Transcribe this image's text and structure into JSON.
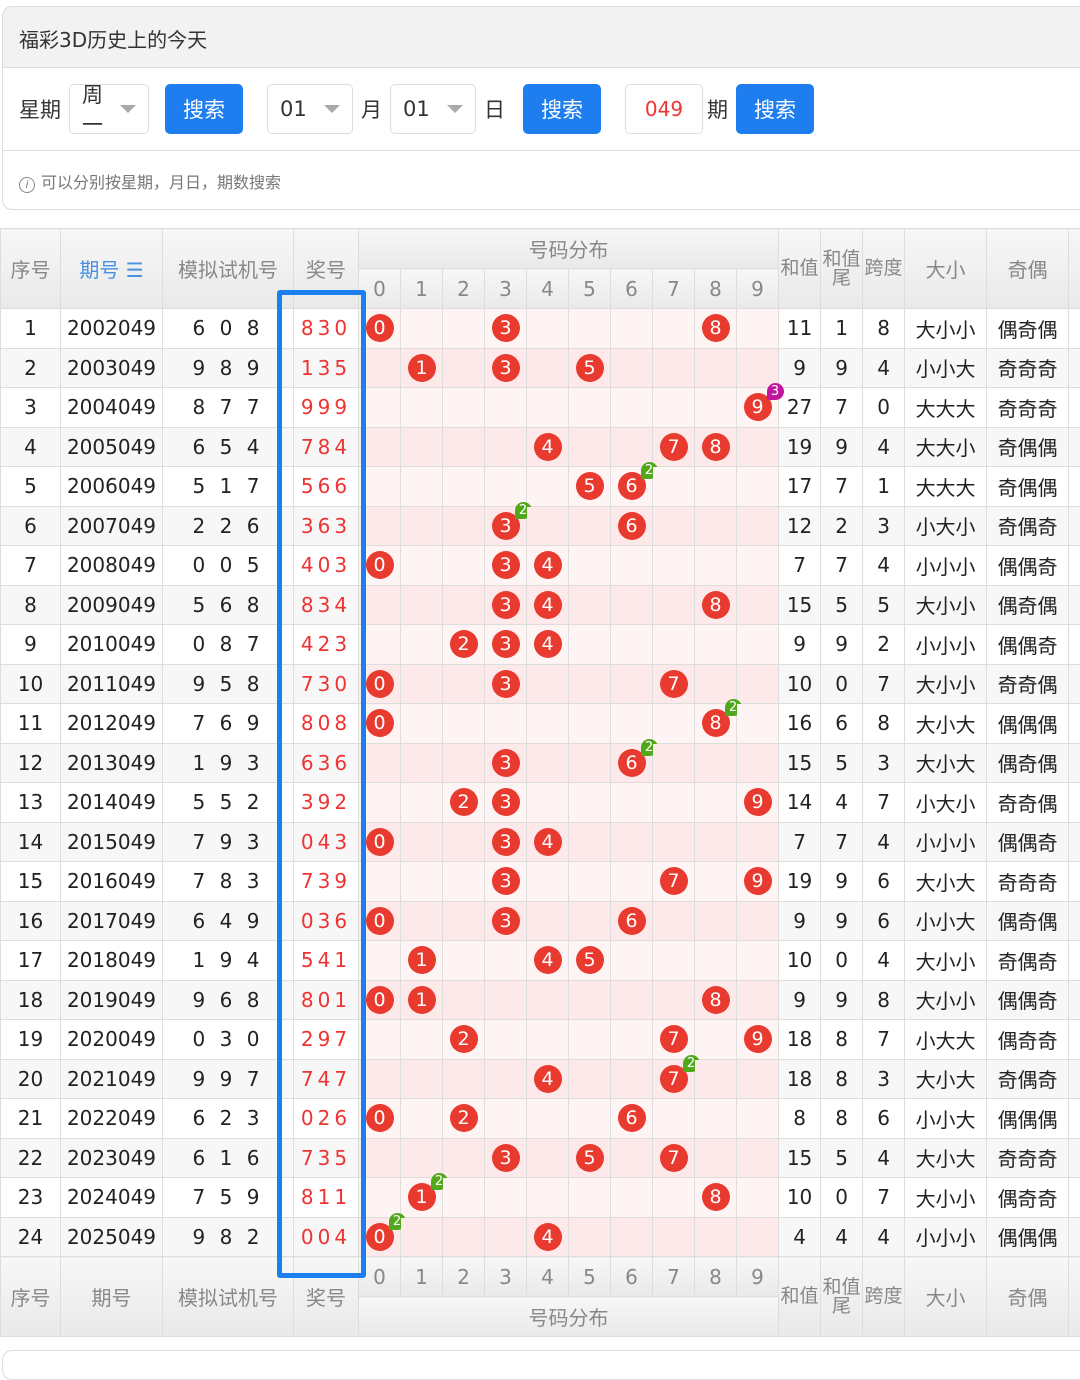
{
  "panel": {
    "title": "福彩3D历史上的今天",
    "week_label": "星期",
    "week_value": "周一",
    "search": "搜索",
    "month_value": "01",
    "month_label": "月",
    "day_value": "01",
    "day_label": "日",
    "issue_value": "049",
    "issue_label": "期",
    "tip": "可以分别按星期，月日，期数搜索"
  },
  "table": {
    "headers": {
      "index": "序号",
      "issue": "期号",
      "issue_sort": "☰",
      "sim": "模拟试机号",
      "win": "奖号",
      "dist": "号码分布",
      "sum": "和值",
      "sum_tail": "和值尾",
      "span": "跨度",
      "size": "大小",
      "parity": "奇偶"
    },
    "digits": [
      "0",
      "1",
      "2",
      "3",
      "4",
      "5",
      "6",
      "7",
      "8",
      "9"
    ],
    "ball_color": "#e83a2e",
    "badge_colors": {
      "2": "#52a81c",
      "3": "#c0169e"
    },
    "rows": [
      [
        "1",
        "2002049",
        "6 0 8",
        "830",
        "11",
        "1",
        "8",
        "大小小",
        "偶奇偶"
      ],
      [
        "2",
        "2003049",
        "9 8 9",
        "135",
        "9",
        "9",
        "4",
        "小小大",
        "奇奇奇"
      ],
      [
        "3",
        "2004049",
        "8 7 7",
        "999",
        "27",
        "7",
        "0",
        "大大大",
        "奇奇奇"
      ],
      [
        "4",
        "2005049",
        "6 5 4",
        "784",
        "19",
        "9",
        "4",
        "大大小",
        "奇偶偶"
      ],
      [
        "5",
        "2006049",
        "5 1 7",
        "566",
        "17",
        "7",
        "1",
        "大大大",
        "奇偶偶"
      ],
      [
        "6",
        "2007049",
        "2 2 6",
        "363",
        "12",
        "2",
        "3",
        "小大小",
        "奇偶奇"
      ],
      [
        "7",
        "2008049",
        "0 0 5",
        "403",
        "7",
        "7",
        "4",
        "小小小",
        "偶偶奇"
      ],
      [
        "8",
        "2009049",
        "5 6 8",
        "834",
        "15",
        "5",
        "5",
        "大小小",
        "偶奇偶"
      ],
      [
        "9",
        "2010049",
        "0 8 7",
        "423",
        "9",
        "9",
        "2",
        "小小小",
        "偶偶奇"
      ],
      [
        "10",
        "2011049",
        "9 5 8",
        "730",
        "10",
        "0",
        "7",
        "大小小",
        "奇奇偶"
      ],
      [
        "11",
        "2012049",
        "7 6 9",
        "808",
        "16",
        "6",
        "8",
        "大小大",
        "偶偶偶"
      ],
      [
        "12",
        "2013049",
        "1 9 3",
        "636",
        "15",
        "5",
        "3",
        "大小大",
        "偶奇偶"
      ],
      [
        "13",
        "2014049",
        "5 5 2",
        "392",
        "14",
        "4",
        "7",
        "小大小",
        "奇奇偶"
      ],
      [
        "14",
        "2015049",
        "7 9 3",
        "043",
        "7",
        "7",
        "4",
        "小小小",
        "偶偶奇"
      ],
      [
        "15",
        "2016049",
        "7 8 3",
        "739",
        "19",
        "9",
        "6",
        "大小大",
        "奇奇奇"
      ],
      [
        "16",
        "2017049",
        "6 4 9",
        "036",
        "9",
        "9",
        "6",
        "小小大",
        "偶奇偶"
      ],
      [
        "17",
        "2018049",
        "1 9 4",
        "541",
        "10",
        "0",
        "4",
        "大小小",
        "奇偶奇"
      ],
      [
        "18",
        "2019049",
        "9 6 8",
        "801",
        "9",
        "9",
        "8",
        "大小小",
        "偶偶奇"
      ],
      [
        "19",
        "2020049",
        "0 3 0",
        "297",
        "18",
        "8",
        "7",
        "小大大",
        "偶奇奇"
      ],
      [
        "20",
        "2021049",
        "9 9 7",
        "747",
        "18",
        "8",
        "3",
        "大小大",
        "奇偶奇"
      ],
      [
        "21",
        "2022049",
        "6 2 3",
        "026",
        "8",
        "8",
        "6",
        "小小大",
        "偶偶偶"
      ],
      [
        "22",
        "2023049",
        "6 1 6",
        "735",
        "15",
        "5",
        "4",
        "大小大",
        "奇奇奇"
      ],
      [
        "23",
        "2024049",
        "7 5 9",
        "811",
        "10",
        "0",
        "7",
        "大小小",
        "偶奇奇"
      ],
      [
        "24",
        "2025049",
        "9 8 2",
        "004",
        "4",
        "4",
        "4",
        "小小小",
        "偶偶偶"
      ]
    ]
  }
}
